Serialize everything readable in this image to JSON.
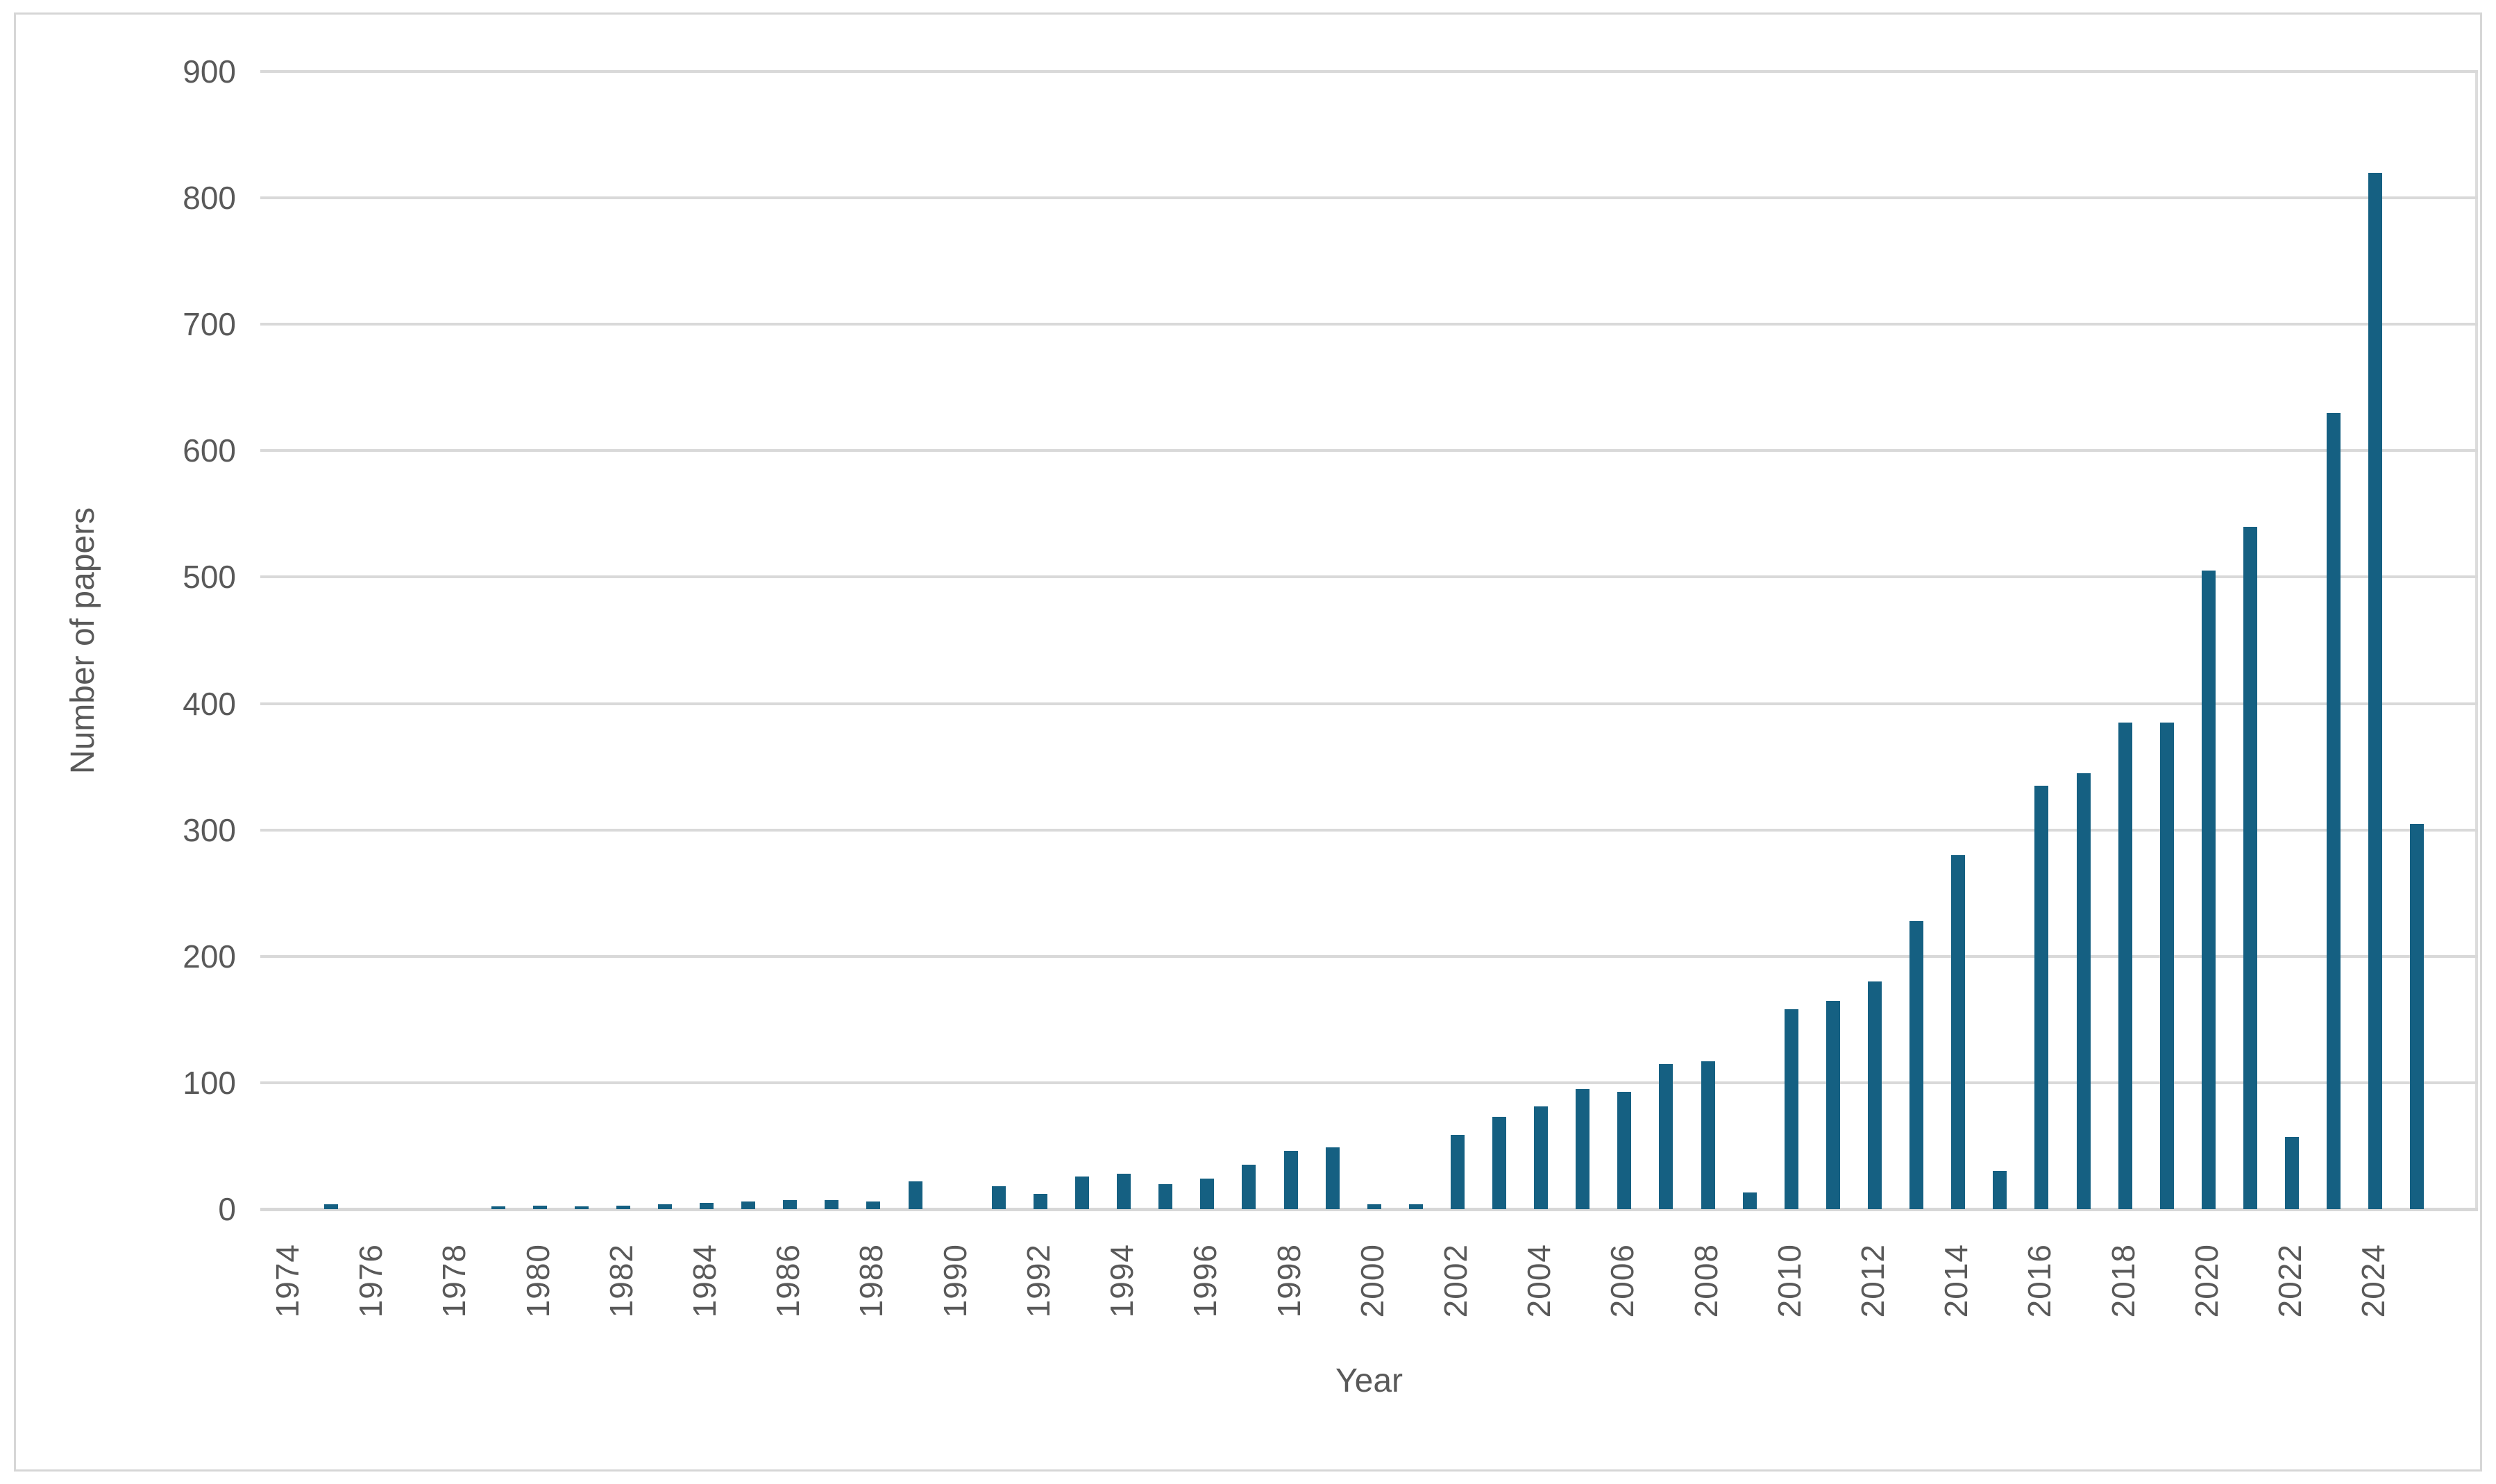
{
  "chart_data": {
    "type": "bar",
    "title": "",
    "xlabel": "Year",
    "ylabel": "Number of papers",
    "categories": [
      1974,
      1975,
      1976,
      1977,
      1978,
      1979,
      1980,
      1981,
      1982,
      1983,
      1984,
      1985,
      1986,
      1987,
      1988,
      1989,
      1990,
      1991,
      1992,
      1993,
      1994,
      1995,
      1996,
      1997,
      1998,
      1999,
      2000,
      2001,
      2002,
      2003,
      2004,
      2005,
      2006,
      2007,
      2008,
      2009,
      2010,
      2011,
      2012,
      2013,
      2014,
      2015,
      2016,
      2017,
      2018,
      2019,
      2020,
      2021,
      2022,
      2023,
      2024,
      2025
    ],
    "values": [
      0,
      4,
      0,
      0,
      0,
      2,
      3,
      2,
      3,
      4,
      5,
      6,
      7,
      7,
      6,
      22,
      0,
      18,
      12,
      26,
      28,
      20,
      24,
      35,
      46,
      49,
      4,
      4,
      59,
      73,
      81,
      95,
      93,
      115,
      117,
      13,
      158,
      165,
      180,
      228,
      280,
      30,
      335,
      345,
      385,
      385,
      505,
      540,
      57,
      630,
      820,
      305
    ],
    "ylim": [
      0,
      900
    ],
    "yticks": [
      0,
      100,
      200,
      300,
      400,
      500,
      600,
      700,
      800,
      900
    ],
    "xtick_labels": [
      "1974",
      "1976",
      "1978",
      "1980",
      "1982",
      "1984",
      "1986",
      "1988",
      "1990",
      "1992",
      "1994",
      "1996",
      "1998",
      "2000",
      "2002",
      "2004",
      "2006",
      "2008",
      "2010",
      "2012",
      "2014",
      "2016",
      "2018",
      "2020",
      "2022",
      "2024"
    ],
    "grid": "horizontal-only",
    "legend_position": "none",
    "bar_color": "#156082",
    "gridline_color": "#d9d9d9",
    "axis_text_color": "#595959"
  }
}
